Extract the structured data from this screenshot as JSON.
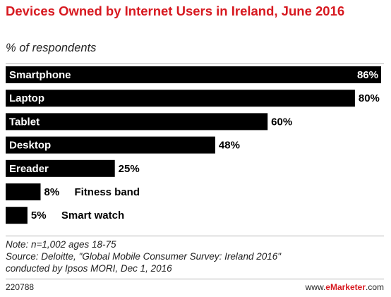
{
  "header": {
    "title": "Devices Owned by Internet Users in Ireland, June 2016",
    "subtitle": "% of respondents"
  },
  "chart_data": {
    "type": "bar",
    "orientation": "horizontal",
    "categories": [
      "Smartphone",
      "Laptop",
      "Tablet",
      "Desktop",
      "Ereader",
      "Fitness band",
      "Smart watch"
    ],
    "values": [
      86,
      80,
      60,
      48,
      25,
      8,
      5
    ],
    "value_labels": [
      "86%",
      "80%",
      "60%",
      "48%",
      "25%",
      "8%",
      "5%"
    ],
    "xlim": [
      0,
      86
    ],
    "bar_color": "#000000",
    "inside_label_color": "#ffffff",
    "grid": false,
    "legend": "none"
  },
  "note": {
    "line1": "Note: n=1,002 ages 18-75",
    "line2": "Source: Deloitte, \"Global Mobile Consumer Survey: Ireland 2016\"",
    "line3": "conducted by Ipsos MORI, Dec 1, 2016"
  },
  "footer": {
    "chart_id": "220788",
    "brand_prefix": "www.",
    "brand_name": "eMarketer",
    "brand_suffix": ".com"
  },
  "colors": {
    "accent": "#d71920",
    "bar": "#000000"
  }
}
